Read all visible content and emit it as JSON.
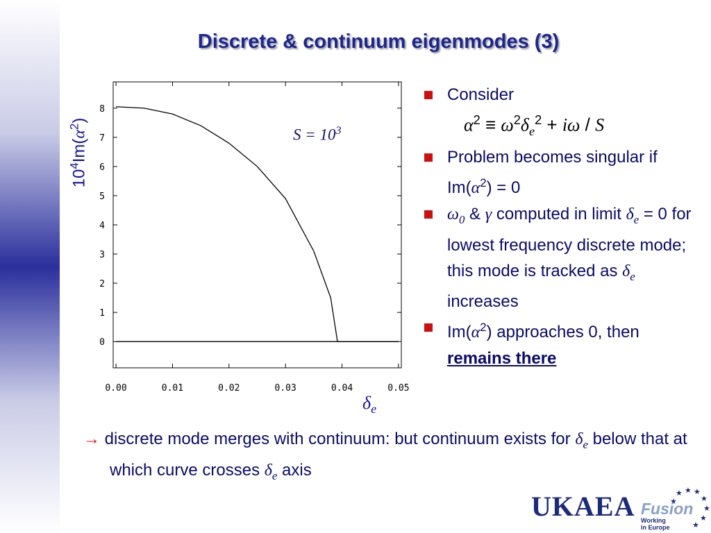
{
  "title": "Discrete & continuum eigenmodes (3)",
  "chart_data": {
    "type": "line",
    "y_label": [
      {
        "t": "10"
      },
      {
        "t": "4",
        "sup": true
      },
      {
        "t": "Im("
      },
      {
        "t": "α",
        "i": true
      },
      {
        "t": "2",
        "sup": true
      },
      {
        "t": ")"
      }
    ],
    "x_label": [
      {
        "t": "δ",
        "i": true
      },
      {
        "t": "e",
        "i": true,
        "sub": true
      }
    ],
    "annotation": [
      {
        "t": "S",
        "i": true
      },
      {
        "t": " = 10",
        "i": true
      },
      {
        "t": "3",
        "i": true,
        "sup": true
      }
    ],
    "series": [
      {
        "color": "#000000",
        "x": [
          0,
          0.005,
          0.01,
          0.015,
          0.02,
          0.025,
          0.03,
          0.035,
          0.038,
          0.0392,
          0.05
        ],
        "values": [
          8.05,
          8.0,
          7.8,
          7.4,
          6.8,
          6.0,
          4.9,
          3.1,
          1.5,
          0,
          0
        ]
      },
      {
        "color": "#000000",
        "x": [
          0,
          0.05
        ],
        "values": [
          0,
          0
        ]
      }
    ],
    "xlim": [
      -0.0005,
      0.0505
    ],
    "ylim": [
      -0.9,
      8.9
    ],
    "xticks": [
      {
        "value": 0,
        "label": "0.00"
      },
      {
        "value": 0.01,
        "label": "0.01"
      },
      {
        "value": 0.02,
        "label": "0.02"
      },
      {
        "value": 0.03,
        "label": "0.03"
      },
      {
        "value": 0.04,
        "label": "0.04"
      },
      {
        "value": 0.05,
        "label": "0.05"
      }
    ],
    "yticks": [
      0,
      1,
      2,
      3,
      4,
      5,
      6,
      7,
      8
    ],
    "grid": false
  },
  "bullets": [
    [
      {
        "t": "Consider"
      }
    ],
    [
      {
        "t": "α",
        "i": true
      },
      {
        "t": "2",
        "sup": true
      },
      {
        "t": " ≡ "
      },
      {
        "t": "ω",
        "i": true
      },
      {
        "t": "2",
        "sup": true
      },
      {
        "t": "δ",
        "i": true
      },
      {
        "t": "e",
        "i": true,
        "sub": true
      },
      {
        "t": "2",
        "sup": true
      },
      {
        "t": " + "
      },
      {
        "t": "iω",
        "i": true
      },
      {
        "t": " / "
      },
      {
        "t": "S",
        "i": true
      }
    ],
    [
      {
        "t": "Problem becomes singular if Im("
      },
      {
        "t": "α",
        "i": true
      },
      {
        "t": "2",
        "sup": true
      },
      {
        "t": ") = 0"
      }
    ],
    [
      {
        "t": "ω",
        "i": true
      },
      {
        "t": "0",
        "i": true,
        "sub": true
      },
      {
        "t": " & "
      },
      {
        "t": "γ",
        "i": true
      },
      {
        "t": " computed in limit "
      },
      {
        "t": "δ",
        "i": true
      },
      {
        "t": "e",
        "i": true,
        "sub": true
      },
      {
        "t": " = 0 for lowest frequency discrete mode; this mode is tracked as "
      },
      {
        "t": "δ",
        "i": true
      },
      {
        "t": "e",
        "i": true,
        "sub": true
      },
      {
        "t": " increases"
      }
    ],
    [
      {
        "t": "Im("
      },
      {
        "t": "α",
        "i": true
      },
      {
        "t": "2",
        "sup": true
      },
      {
        "t": ") approaches 0, then "
      },
      {
        "t": "remains there",
        "b": true,
        "u": true
      }
    ]
  ],
  "note": [
    {
      "t": "→ ",
      "arrow": true
    },
    {
      "t": "discrete mode merges with continuum: but continuum exists for "
    },
    {
      "t": "δ",
      "i": true
    },
    {
      "t": "e",
      "i": true,
      "sub": true
    },
    {
      "t": " below that at which curve crosses "
    },
    {
      "t": "δ",
      "i": true
    },
    {
      "t": "e",
      "i": true,
      "sub": true
    },
    {
      "t": " axis"
    }
  ],
  "logo": {
    "name": "UKAEA",
    "fusion": "Fusion",
    "line1": "Working",
    "line2": "in Europe"
  }
}
